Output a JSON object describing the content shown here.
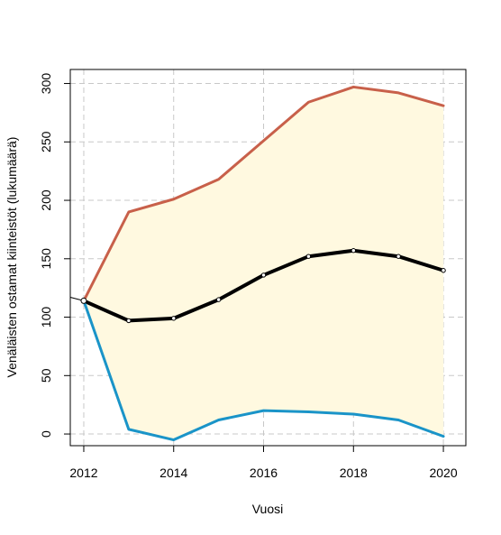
{
  "chart_data": {
    "type": "line",
    "xlabel": "Vuosi",
    "ylabel": "Venäläisten ostamat kiinteistöt (lukumäärä)",
    "xlim": [
      2011.7,
      2020.5
    ],
    "ylim": [
      -10,
      312
    ],
    "x_ticks": [
      2012,
      2014,
      2016,
      2018,
      2020
    ],
    "y_ticks": [
      0,
      50,
      100,
      150,
      200,
      250,
      300
    ],
    "grid": true,
    "legend": "none",
    "x": [
      2012,
      2013,
      2014,
      2015,
      2016,
      2017,
      2018,
      2019,
      2020
    ],
    "series": [
      {
        "values": [
          114,
          190,
          201,
          218,
          251,
          284,
          297,
          292,
          281
        ],
        "color": "#c8604a",
        "role": "upper"
      },
      {
        "values": [
          114,
          97,
          99,
          115,
          136,
          152,
          157,
          152,
          140
        ],
        "color": "#000000",
        "role": "center"
      },
      {
        "values": [
          114,
          4,
          -5,
          12,
          20,
          19,
          17,
          12,
          -2
        ],
        "color": "#1a94c8",
        "role": "lower"
      }
    ],
    "history": {
      "x": [
        2011.7,
        2012
      ],
      "values": [
        117,
        114
      ],
      "color": "#000000"
    },
    "band_fill": "#fff9e0"
  }
}
